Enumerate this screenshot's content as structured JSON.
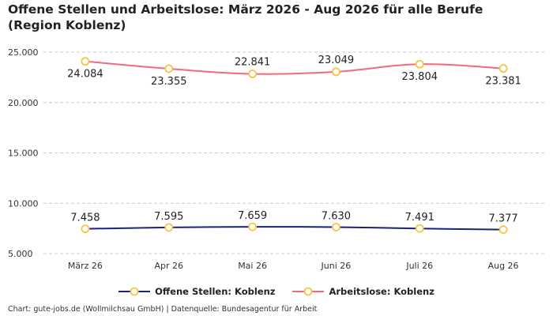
{
  "title": "Offene Stellen und Arbeitslose: März 2026 - Aug 2026 für alle Berufe (Region Koblenz)",
  "footer": "Chart: gute-jobs.de (Wollmilchsau GmbH) | Datenquelle: Bundesagentur für Arbeit",
  "colors": {
    "offene_stellen": "#1a237e",
    "arbeitslose": "#f06b82",
    "marker_fill": "#ffffff",
    "marker_stroke": "#f5c542",
    "grid": "#cccccc"
  },
  "chart_data": {
    "type": "line",
    "categories": [
      "März 26",
      "Apr 26",
      "Mai 26",
      "Juni 26",
      "Juli 26",
      "Aug 26"
    ],
    "ylim": [
      5000,
      25000
    ],
    "yticks": [
      "5.000",
      "10.000",
      "15.000",
      "20.000",
      "25.000"
    ],
    "ytick_values": [
      5000,
      10000,
      15000,
      20000,
      25000
    ],
    "grid": true,
    "legend_position": "bottom",
    "series": [
      {
        "name": "Offene Stellen: Koblenz",
        "values": [
          7458,
          7595,
          7659,
          7630,
          7491,
          7377
        ],
        "labels": [
          "7.458",
          "7.595",
          "7.659",
          "7.630",
          "7.491",
          "7.377"
        ]
      },
      {
        "name": "Arbeitslose: Koblenz",
        "values": [
          24084,
          23355,
          22841,
          23049,
          23804,
          23381
        ],
        "labels": [
          "24.084",
          "23.355",
          "22.841",
          "23.049",
          "23.804",
          "23.381"
        ]
      }
    ]
  }
}
